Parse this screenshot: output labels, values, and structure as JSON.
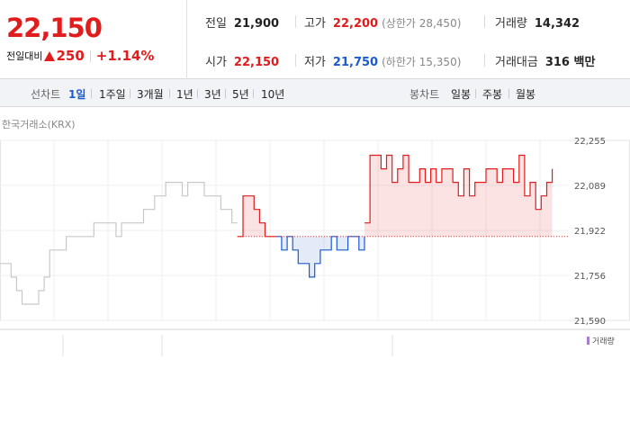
{
  "header": {
    "current_price": "22,150",
    "change_label": "전일대비",
    "change_value": "250",
    "change_pct": "+1.14%",
    "stats": {
      "prev_close_label": "전일",
      "prev_close": "21,900",
      "high_label": "고가",
      "high": "22,200",
      "upper_limit": "(상한가 28,450)",
      "volume_label": "거래량",
      "volume": "14,342",
      "open_label": "시가",
      "open": "22,150",
      "low_label": "저가",
      "low": "21,750",
      "lower_limit": "(하한가 15,350)",
      "amount_label": "거래대금",
      "amount": "316 백만"
    }
  },
  "tabs": {
    "line_label": "선차트",
    "line_periods": [
      "1일",
      "1주일",
      "3개월",
      "1년",
      "3년",
      "5년",
      "10년"
    ],
    "candle_label": "봉차트",
    "candle_periods": [
      "일봉",
      "주봉",
      "월봉"
    ]
  },
  "chart": {
    "source": "한국거래소(KRX)",
    "volume_legend": "거래량"
  },
  "chart_data": {
    "type": "line",
    "ylim": [
      21590,
      22255
    ],
    "yticks": [
      "22,255",
      "22,089",
      "21,922",
      "21,756",
      "21,590"
    ],
    "ytick_values": [
      22255,
      22089,
      21922,
      21756,
      21590
    ],
    "baseline": 21900,
    "series": [
      {
        "name": "",
        "color": "#c8c8c8",
        "values": [
          21800,
          21800,
          21750,
          21700,
          21650,
          21650,
          21650,
          21700,
          21750,
          21850,
          21850,
          21850,
          21900,
          21900,
          21900,
          21900,
          21900,
          21950,
          21950,
          21950,
          21950,
          21900,
          21950,
          21950,
          21950,
          21950,
          22000,
          22000,
          22050,
          22050,
          22100,
          22100,
          22100,
          22050,
          22100,
          22100,
          22100,
          22050,
          22050,
          22050,
          22000,
          22000,
          21950,
          21950
        ]
      },
      {
        "name": "",
        "color": "#e01c1c",
        "values": [
          21900,
          22050,
          22050,
          22000,
          21950,
          21900,
          21900,
          21900
        ]
      },
      {
        "name": "",
        "color": "#1a5bd1",
        "values": [
          21900,
          21850,
          21900,
          21850,
          21800,
          21800,
          21750,
          21800,
          21850,
          21850,
          21900,
          21850,
          21850,
          21900,
          21900,
          21850,
          21900
        ]
      },
      {
        "name": "",
        "color": "#e01c1c",
        "values": [
          21950,
          22200,
          22200,
          22150,
          22200,
          22100,
          22150,
          22200,
          22100,
          22100,
          22150,
          22100,
          22150,
          22100,
          22150,
          22150,
          22100,
          22050,
          22150,
          22050,
          22100,
          22100,
          22150,
          22150,
          22100,
          22150,
          22150,
          22100,
          22200,
          22050,
          22100,
          22000,
          22050,
          22100,
          22150
        ]
      }
    ],
    "grid": true
  },
  "colors": {
    "up": "#e01c1c",
    "down": "#1a5bd1",
    "prior": "#c8c8c8"
  }
}
